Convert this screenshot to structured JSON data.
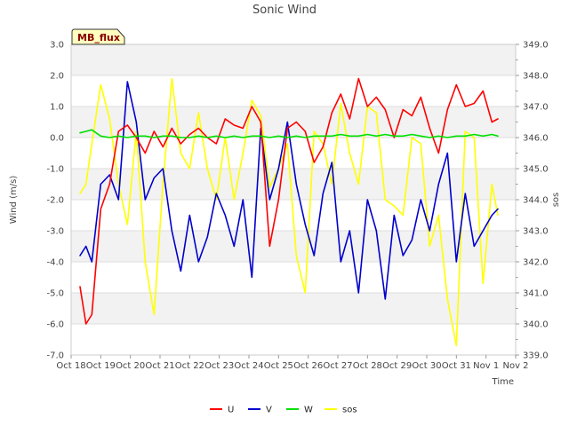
{
  "chart_data": {
    "type": "line",
    "title": "Sonic Wind",
    "xlabel": "Time",
    "ylabel": "Wind (m/s)",
    "y2label": "sos",
    "site_tag": "MB_flux",
    "xlim": [
      0,
      15
    ],
    "ylim": [
      -7.0,
      3.0
    ],
    "y2lim": [
      339.0,
      349.0
    ],
    "grid": true,
    "legend_position": "bottom",
    "x_tick_labels": [
      "Oct 18",
      "Oct 19",
      "Oct 20",
      "Oct 21",
      "Oct 22",
      "Oct 23",
      "Oct 24",
      "Oct 25",
      "Oct 26",
      "Oct 27",
      "Oct 28",
      "Oct 29",
      "Oct 30",
      "Oct 31",
      "Nov 1",
      "Nov 2"
    ],
    "y_tick_labels": [
      "3.0",
      "2.0",
      "1.0",
      "0.0",
      "-1.0",
      "-2.0",
      "-3.0",
      "-4.0",
      "-5.0",
      "-6.0",
      "-7.0"
    ],
    "y2_tick_labels": [
      "349.0",
      "348.0",
      "347.0",
      "346.0",
      "345.0",
      "344.0",
      "343.0",
      "342.0",
      "341.0",
      "340.0",
      "339.0"
    ],
    "x": [
      0.3,
      0.5,
      0.7,
      1.0,
      1.3,
      1.6,
      1.9,
      2.2,
      2.5,
      2.8,
      3.1,
      3.4,
      3.7,
      4.0,
      4.3,
      4.6,
      4.9,
      5.2,
      5.5,
      5.8,
      6.1,
      6.4,
      6.7,
      7.0,
      7.3,
      7.6,
      7.9,
      8.2,
      8.5,
      8.8,
      9.1,
      9.4,
      9.7,
      10.0,
      10.3,
      10.6,
      10.9,
      11.2,
      11.5,
      11.8,
      12.1,
      12.4,
      12.7,
      13.0,
      13.3,
      13.6,
      13.9,
      14.2,
      14.4
    ],
    "series": [
      {
        "name": "U",
        "color": "#ff0000",
        "axis": "left",
        "values": [
          -4.8,
          -6.0,
          -5.7,
          -2.3,
          -1.5,
          0.2,
          0.4,
          0.0,
          -0.5,
          0.2,
          -0.3,
          0.3,
          -0.2,
          0.1,
          0.3,
          0.0,
          -0.2,
          0.6,
          0.4,
          0.3,
          1.0,
          0.5,
          -3.5,
          -2.0,
          0.3,
          0.5,
          0.2,
          -0.8,
          -0.3,
          0.8,
          1.4,
          0.6,
          1.9,
          1.0,
          1.3,
          0.9,
          0.0,
          0.9,
          0.7,
          1.3,
          0.3,
          -0.5,
          0.9,
          1.7,
          1.0,
          1.1,
          1.5,
          0.5,
          0.6
        ]
      },
      {
        "name": "V",
        "color": "#0000cc",
        "axis": "left",
        "values": [
          -3.8,
          -3.5,
          -4.0,
          -1.5,
          -1.2,
          -2.0,
          1.8,
          0.5,
          -2.0,
          -1.3,
          -1.0,
          -3.0,
          -4.3,
          -2.5,
          -4.0,
          -3.2,
          -1.8,
          -2.5,
          -3.5,
          -2.0,
          -4.5,
          0.3,
          -2.0,
          -1.0,
          0.5,
          -1.5,
          -2.8,
          -3.8,
          -1.8,
          -0.8,
          -4.0,
          -3.0,
          -5.0,
          -2.0,
          -3.0,
          -5.2,
          -2.5,
          -3.8,
          -3.3,
          -2.0,
          -3.0,
          -1.5,
          -0.5,
          -4.0,
          -1.8,
          -3.5,
          -3.0,
          -2.5,
          -2.3
        ]
      },
      {
        "name": "W",
        "color": "#00e000",
        "axis": "left",
        "values": [
          0.15,
          0.2,
          0.25,
          0.05,
          0.0,
          0.05,
          0.0,
          0.05,
          0.05,
          0.0,
          0.05,
          0.05,
          0.0,
          0.0,
          0.05,
          0.0,
          0.05,
          0.0,
          0.05,
          0.0,
          0.05,
          0.05,
          0.0,
          0.05,
          0.0,
          0.05,
          0.0,
          0.05,
          0.05,
          0.05,
          0.1,
          0.05,
          0.05,
          0.1,
          0.05,
          0.1,
          0.05,
          0.05,
          0.1,
          0.05,
          0.0,
          0.05,
          0.0,
          0.05,
          0.05,
          0.1,
          0.05,
          0.1,
          0.05
        ]
      },
      {
        "name": "sos",
        "color": "#ffff00",
        "axis": "right",
        "values": [
          344.2,
          344.5,
          345.8,
          347.7,
          346.6,
          344.5,
          343.2,
          346.2,
          342.0,
          340.3,
          344.5,
          347.9,
          345.5,
          345.0,
          346.8,
          345.0,
          344.0,
          346.0,
          344.0,
          345.5,
          347.2,
          346.7,
          344.4,
          345.0,
          345.8,
          342.2,
          341.0,
          346.2,
          345.8,
          344.5,
          347.1,
          345.5,
          344.5,
          347.0,
          346.8,
          344.0,
          343.8,
          343.5,
          346.0,
          345.8,
          342.5,
          343.5,
          340.8,
          339.3,
          346.2,
          346.0,
          341.3,
          344.5,
          343.5
        ]
      }
    ]
  }
}
